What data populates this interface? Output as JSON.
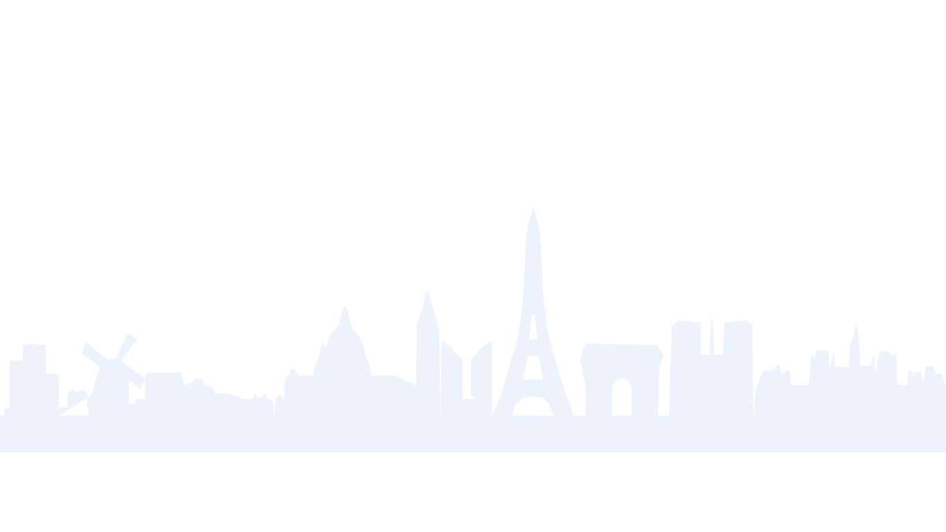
{
  "page": {
    "background_color": "#ffffff"
  },
  "skyline": {
    "fill_color": "#ecf3fd",
    "landmarks": [
      "windmill-icon",
      "dome-icon",
      "tower-icon",
      "eiffel-tower-icon",
      "triumphal-arch-icon",
      "cathedral-icon",
      "gothic-spires-icon"
    ]
  }
}
